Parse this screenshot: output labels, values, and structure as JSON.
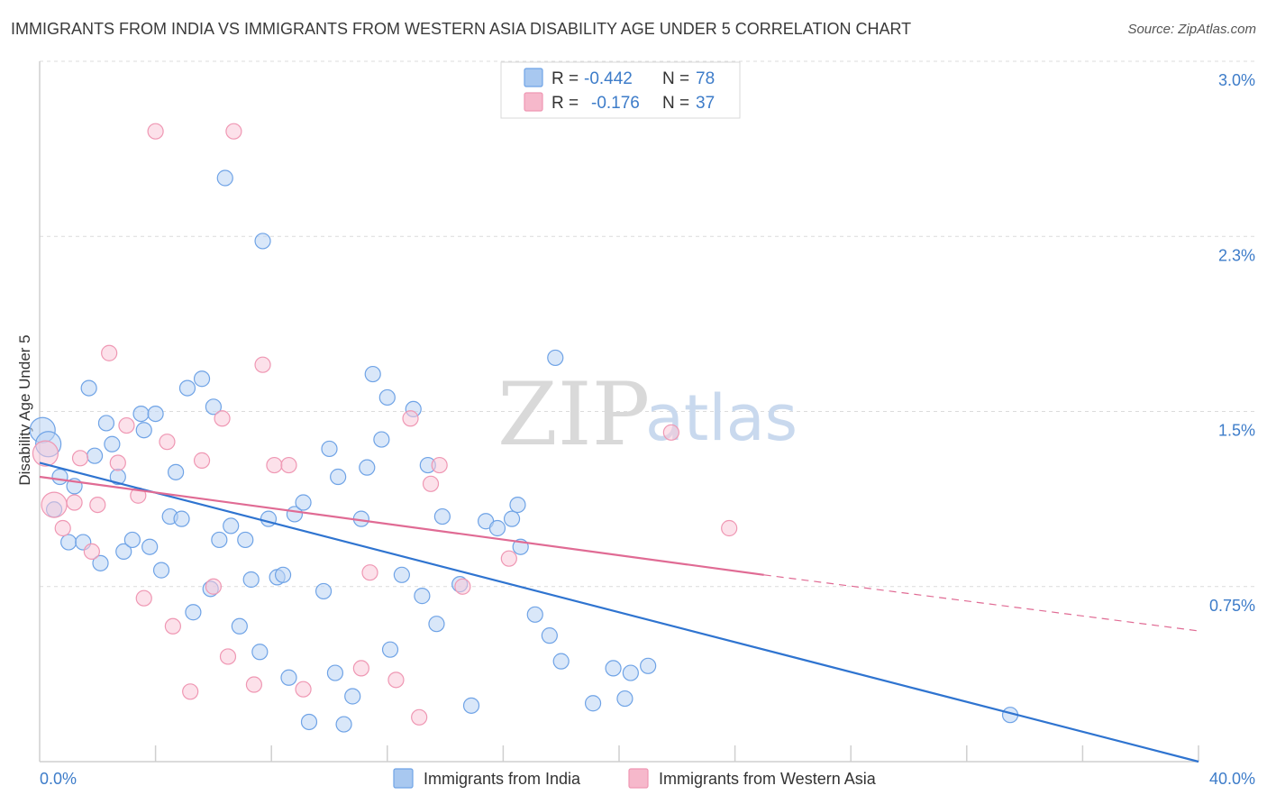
{
  "header": {
    "title": "IMMIGRANTS FROM INDIA VS IMMIGRANTS FROM WESTERN ASIA DISABILITY AGE UNDER 5 CORRELATION CHART",
    "source": "Source: ZipAtlas.com"
  },
  "watermark": {
    "zip": "ZIP",
    "atlas": "atlas"
  },
  "legend": {
    "rows": [
      {
        "r_label": "R =",
        "r_value": "-0.442",
        "n_label": "N =",
        "n_value": "78",
        "color": "#a8c8f0"
      },
      {
        "r_label": "R =",
        "r_value": "-0.176",
        "n_label": "N =",
        "n_value": "37",
        "color": "#f6b8cb"
      }
    ]
  },
  "bottom_legend": [
    "Immigrants from India",
    "Immigrants from Western Asia"
  ],
  "chart_data": {
    "type": "scatter",
    "title": "IMMIGRANTS FROM INDIA VS IMMIGRANTS FROM WESTERN ASIA DISABILITY AGE UNDER 5 CORRELATION CHART",
    "xlabel": "",
    "ylabel": "Disability Age Under 5",
    "xlim": [
      0,
      40
    ],
    "ylim": [
      0,
      3.0
    ],
    "x_tick_labels": [
      "0.0%",
      "40.0%"
    ],
    "y_tick_labels": [
      "0.75%",
      "1.5%",
      "2.3%",
      "3.0%"
    ],
    "y_ticks": [
      0.75,
      1.5,
      2.25,
      3.0
    ],
    "grid": true,
    "legend_position": "top-center",
    "series": [
      {
        "name": "Immigrants from India",
        "color": "#6fa3e6",
        "fill": "#b9d3f4",
        "trend": {
          "x0": 0,
          "y0": 1.28,
          "x1": 40,
          "y1": 0.0,
          "color": "#2f74d0"
        },
        "points": [
          [
            0.1,
            1.42
          ],
          [
            0.3,
            1.36
          ],
          [
            0.5,
            1.08
          ],
          [
            0.7,
            1.22
          ],
          [
            1.0,
            0.94
          ],
          [
            1.2,
            1.18
          ],
          [
            1.5,
            0.94
          ],
          [
            1.7,
            1.6
          ],
          [
            1.9,
            1.31
          ],
          [
            2.1,
            0.85
          ],
          [
            2.3,
            1.45
          ],
          [
            2.5,
            1.36
          ],
          [
            2.7,
            1.22
          ],
          [
            2.9,
            0.9
          ],
          [
            3.2,
            0.95
          ],
          [
            3.5,
            1.49
          ],
          [
            3.6,
            1.42
          ],
          [
            3.8,
            0.92
          ],
          [
            4.0,
            1.49
          ],
          [
            4.2,
            0.82
          ],
          [
            4.5,
            1.05
          ],
          [
            4.7,
            1.24
          ],
          [
            4.9,
            1.04
          ],
          [
            5.1,
            1.6
          ],
          [
            5.3,
            0.64
          ],
          [
            5.6,
            1.64
          ],
          [
            5.9,
            0.74
          ],
          [
            6.0,
            1.52
          ],
          [
            6.2,
            0.95
          ],
          [
            6.4,
            2.5
          ],
          [
            6.6,
            1.01
          ],
          [
            6.9,
            0.58
          ],
          [
            7.1,
            0.95
          ],
          [
            7.3,
            0.78
          ],
          [
            7.6,
            0.47
          ],
          [
            7.7,
            2.23
          ],
          [
            7.9,
            1.04
          ],
          [
            8.2,
            0.79
          ],
          [
            8.4,
            0.8
          ],
          [
            8.6,
            0.36
          ],
          [
            8.8,
            1.06
          ],
          [
            9.1,
            1.11
          ],
          [
            9.3,
            0.17
          ],
          [
            9.8,
            0.73
          ],
          [
            10.0,
            1.34
          ],
          [
            10.2,
            0.38
          ],
          [
            10.3,
            1.22
          ],
          [
            10.5,
            0.16
          ],
          [
            10.8,
            0.28
          ],
          [
            11.1,
            1.04
          ],
          [
            11.3,
            1.26
          ],
          [
            11.5,
            1.66
          ],
          [
            11.8,
            1.38
          ],
          [
            12.0,
            1.56
          ],
          [
            12.1,
            0.48
          ],
          [
            12.5,
            0.8
          ],
          [
            12.9,
            1.51
          ],
          [
            13.2,
            0.71
          ],
          [
            13.4,
            1.27
          ],
          [
            13.7,
            0.59
          ],
          [
            13.9,
            1.05
          ],
          [
            14.5,
            0.76
          ],
          [
            14.9,
            0.24
          ],
          [
            15.4,
            1.03
          ],
          [
            15.8,
            1.0
          ],
          [
            16.3,
            1.04
          ],
          [
            16.5,
            1.1
          ],
          [
            16.6,
            0.92
          ],
          [
            17.1,
            0.63
          ],
          [
            17.6,
            0.54
          ],
          [
            17.8,
            1.73
          ],
          [
            18.0,
            0.43
          ],
          [
            19.1,
            0.25
          ],
          [
            19.8,
            0.4
          ],
          [
            20.2,
            0.27
          ],
          [
            20.4,
            0.38
          ],
          [
            21.0,
            0.41
          ],
          [
            33.5,
            0.2
          ]
        ]
      },
      {
        "name": "Immigrants from Western Asia",
        "color": "#ef97b3",
        "fill": "#f9c9d8",
        "trend": {
          "x0": 0,
          "y0": 1.22,
          "x1": 25,
          "y1": 0.8,
          "dash_to_x": 40,
          "dash_to_y": 0.56,
          "color": "#e06b94"
        },
        "points": [
          [
            0.2,
            1.32
          ],
          [
            0.5,
            1.1
          ],
          [
            0.8,
            1.0
          ],
          [
            1.2,
            1.11
          ],
          [
            1.4,
            1.3
          ],
          [
            1.8,
            0.9
          ],
          [
            2.0,
            1.1
          ],
          [
            2.4,
            1.75
          ],
          [
            2.7,
            1.28
          ],
          [
            3.0,
            1.44
          ],
          [
            3.4,
            1.14
          ],
          [
            3.6,
            0.7
          ],
          [
            4.0,
            2.7
          ],
          [
            4.4,
            1.37
          ],
          [
            4.6,
            0.58
          ],
          [
            5.2,
            0.3
          ],
          [
            5.6,
            1.29
          ],
          [
            6.0,
            0.75
          ],
          [
            6.3,
            1.47
          ],
          [
            6.5,
            0.45
          ],
          [
            6.7,
            2.7
          ],
          [
            7.4,
            0.33
          ],
          [
            7.7,
            1.7
          ],
          [
            8.1,
            1.27
          ],
          [
            8.6,
            1.27
          ],
          [
            9.1,
            0.31
          ],
          [
            11.1,
            0.4
          ],
          [
            11.4,
            0.81
          ],
          [
            12.3,
            0.35
          ],
          [
            12.8,
            1.47
          ],
          [
            13.1,
            0.19
          ],
          [
            13.5,
            1.19
          ],
          [
            13.8,
            1.27
          ],
          [
            14.6,
            0.75
          ],
          [
            16.2,
            0.87
          ],
          [
            21.8,
            1.41
          ],
          [
            23.8,
            1.0
          ]
        ]
      }
    ]
  }
}
